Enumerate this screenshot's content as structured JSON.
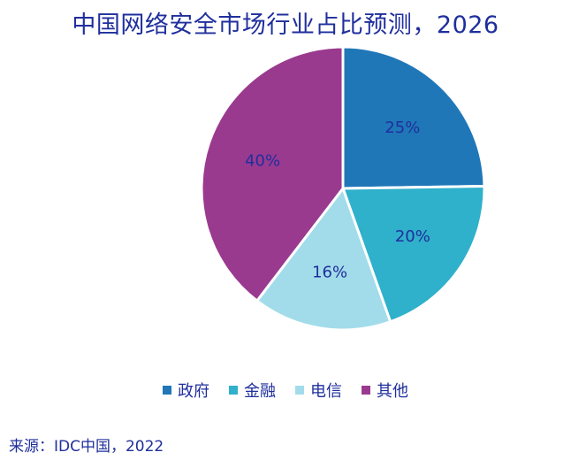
{
  "chart_data": {
    "type": "pie",
    "title": "中国网络安全市场行业占比预测，2026",
    "slices": [
      {
        "name": "政府",
        "value": 25,
        "label": "25%",
        "color": "#1f77b8"
      },
      {
        "name": "金融",
        "value": 20,
        "label": "20%",
        "color": "#2fb0cb"
      },
      {
        "name": "电信",
        "value": 16,
        "label": "16%",
        "color": "#a2dcea"
      },
      {
        "name": "其他",
        "value": 40,
        "label": "40%",
        "color": "#9a3a8f"
      }
    ],
    "legend_position": "bottom",
    "label_color": "#1f2f9c"
  },
  "source": "来源：IDC中国，2022"
}
